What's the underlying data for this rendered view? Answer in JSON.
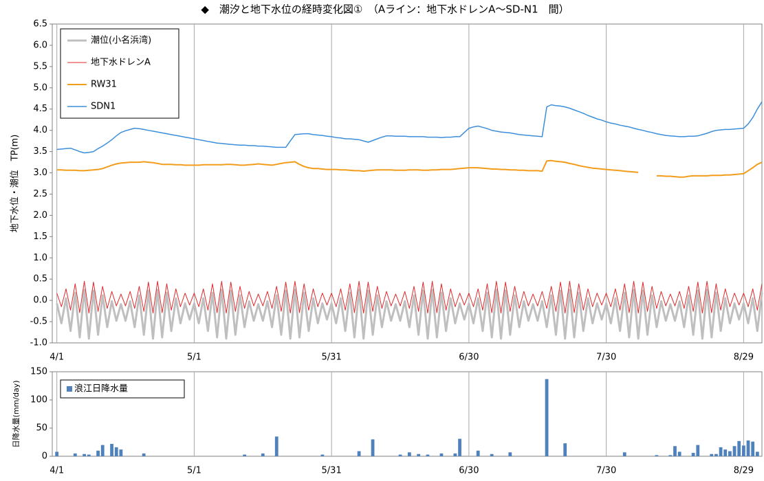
{
  "chart_data": [
    {
      "type": "line",
      "title": "◆　潮汐と地下水位の経時変化図①　（Aライン：地下水ドレンA～SD-N1　間）",
      "ylabel": "地下水位・潮位　TP(m)",
      "x": [
        0,
        1,
        2,
        3,
        4,
        5,
        6,
        7,
        8,
        9,
        10,
        11,
        12,
        13,
        14,
        15,
        16,
        17,
        18,
        19,
        20,
        21,
        22,
        23,
        24,
        25,
        26,
        27,
        28,
        29,
        30,
        31,
        32,
        33,
        34,
        35,
        36,
        37,
        38,
        39,
        40,
        41,
        42,
        43,
        44,
        45,
        46,
        47,
        48,
        49,
        50,
        51,
        52,
        53,
        54,
        55,
        56,
        57,
        58,
        59,
        60,
        61,
        62,
        63,
        64,
        65,
        66,
        67,
        68,
        69,
        70,
        71,
        72,
        73,
        74,
        75,
        76,
        77,
        78,
        79,
        80,
        81,
        82,
        83,
        84,
        85,
        86,
        87,
        88,
        89,
        90,
        91,
        92,
        93,
        94,
        95,
        96,
        97,
        98,
        99,
        100,
        101,
        102,
        103,
        104,
        105,
        106,
        107,
        108,
        109,
        110,
        111,
        112,
        113,
        114,
        115,
        116,
        117,
        118,
        119,
        120,
        121,
        122,
        123,
        124,
        125,
        126,
        127,
        128,
        129,
        130,
        131,
        132,
        133,
        134,
        135,
        136,
        137,
        138,
        139,
        140,
        141,
        142,
        143,
        144,
        145,
        146,
        147,
        148,
        149,
        150,
        151,
        152,
        153,
        154
      ],
      "series": [
        {
          "name": "潮位(小名浜湾)",
          "color": "#bfbfbf",
          "width": 3,
          "values": [
            -0.07,
            -0.54,
            0.05,
            -0.72,
            0.18,
            -0.87,
            0.25,
            -0.9,
            0.23,
            -0.81,
            0.12,
            -0.63,
            -0.02,
            -0.48,
            -0.09,
            -0.48,
            -0.02,
            -0.63,
            0.12,
            -0.81,
            0.23,
            -0.9,
            0.25,
            -0.87,
            0.18,
            -0.72,
            0.05,
            -0.54,
            -0.07,
            -0.45,
            -0.07,
            -0.54,
            0.05,
            -0.72,
            0.18,
            -0.87,
            0.25,
            -0.9,
            0.23,
            -0.81,
            0.12,
            -0.63,
            -0.02,
            -0.48,
            -0.09,
            -0.48,
            -0.02,
            -0.63,
            0.12,
            -0.81,
            0.23,
            -0.9,
            0.25,
            -0.87,
            0.18,
            -0.72,
            0.05,
            -0.54,
            -0.07,
            -0.45,
            -0.07,
            -0.54,
            0.05,
            -0.72,
            0.18,
            -0.87,
            0.25,
            -0.9,
            0.23,
            -0.81,
            0.12,
            -0.63,
            -0.02,
            -0.48,
            -0.09,
            -0.48,
            -0.02,
            -0.63,
            0.12,
            -0.81,
            0.23,
            -0.9,
            0.25,
            -0.87,
            0.18,
            -0.72,
            0.05,
            -0.54,
            -0.07,
            -0.45,
            -0.07,
            -0.54,
            0.05,
            -0.72,
            0.18,
            -0.87,
            0.25,
            -0.9,
            0.23,
            -0.81,
            0.12,
            -0.63,
            -0.02,
            -0.48,
            -0.09,
            -0.48,
            -0.02,
            -0.63,
            0.12,
            -0.81,
            0.23,
            -0.9,
            0.25,
            -0.87,
            0.18,
            -0.72,
            0.05,
            -0.54,
            -0.07,
            -0.45,
            -0.07,
            -0.54,
            0.05,
            -0.72,
            0.18,
            -0.87,
            0.25,
            -0.9,
            0.23,
            -0.81,
            0.12,
            -0.63,
            -0.02,
            -0.48,
            -0.09,
            -0.48,
            -0.02,
            -0.63,
            0.12,
            -0.81,
            0.23,
            -0.9,
            0.25,
            -0.87,
            0.18,
            -0.72,
            0.05,
            -0.54,
            -0.07,
            -0.45,
            -0.07,
            -0.54,
            0.05,
            -0.72,
            0.18
          ]
        },
        {
          "name": "地下水ドレンA",
          "color": "#e02828",
          "width": 1,
          "values": [
            0.17,
            -0.15,
            0.27,
            -0.23,
            0.39,
            -0.29,
            0.45,
            -0.3,
            0.43,
            -0.26,
            0.33,
            -0.19,
            0.21,
            -0.13,
            0.15,
            -0.13,
            0.21,
            -0.19,
            0.33,
            -0.26,
            0.43,
            -0.3,
            0.45,
            -0.29,
            0.39,
            -0.23,
            0.27,
            -0.15,
            0.17,
            -0.11,
            0.17,
            -0.15,
            0.27,
            -0.23,
            0.39,
            -0.29,
            0.45,
            -0.3,
            0.43,
            -0.26,
            0.33,
            -0.19,
            0.21,
            -0.13,
            0.15,
            -0.13,
            0.21,
            -0.19,
            0.33,
            -0.26,
            0.43,
            -0.3,
            0.45,
            -0.29,
            0.39,
            -0.23,
            0.27,
            -0.15,
            0.17,
            -0.11,
            0.17,
            -0.15,
            0.27,
            -0.23,
            0.39,
            -0.29,
            0.45,
            -0.3,
            0.43,
            -0.26,
            0.33,
            -0.19,
            0.21,
            -0.13,
            0.15,
            -0.13,
            0.21,
            -0.19,
            0.33,
            -0.26,
            0.43,
            -0.3,
            0.45,
            -0.29,
            0.39,
            -0.23,
            0.27,
            -0.15,
            0.17,
            -0.11,
            0.17,
            -0.15,
            0.27,
            -0.23,
            0.39,
            -0.29,
            0.45,
            -0.3,
            0.43,
            -0.26,
            0.33,
            -0.19,
            0.21,
            -0.13,
            0.15,
            -0.13,
            0.21,
            -0.19,
            0.33,
            -0.26,
            0.43,
            -0.3,
            0.45,
            -0.29,
            0.39,
            -0.23,
            0.27,
            -0.15,
            0.17,
            -0.11,
            0.17,
            -0.15,
            0.27,
            -0.23,
            0.39,
            -0.29,
            0.45,
            -0.3,
            0.43,
            -0.26,
            0.33,
            -0.19,
            0.21,
            -0.13,
            0.15,
            -0.13,
            0.21,
            -0.19,
            0.33,
            -0.26,
            0.43,
            -0.3,
            0.45,
            -0.29,
            0.39,
            -0.23,
            0.27,
            -0.15,
            0.17,
            -0.11,
            0.17,
            -0.15,
            0.27,
            -0.23,
            0.39
          ]
        },
        {
          "name": "RW31",
          "color": "#f39c1a",
          "width": 2,
          "values": [
            3.07,
            3.07,
            3.06,
            3.06,
            3.06,
            3.05,
            3.05,
            3.06,
            3.07,
            3.08,
            3.1,
            3.14,
            3.18,
            3.21,
            3.23,
            3.24,
            3.25,
            3.25,
            3.25,
            3.26,
            3.25,
            3.24,
            3.22,
            3.2,
            3.2,
            3.2,
            3.19,
            3.19,
            3.18,
            3.18,
            3.18,
            3.18,
            3.19,
            3.19,
            3.19,
            3.19,
            3.19,
            3.2,
            3.2,
            3.19,
            3.18,
            3.18,
            3.19,
            3.2,
            3.21,
            3.2,
            3.19,
            3.18,
            3.2,
            3.22,
            3.24,
            3.25,
            3.26,
            3.2,
            3.15,
            3.12,
            3.1,
            3.1,
            3.09,
            3.08,
            3.08,
            3.08,
            3.07,
            3.07,
            3.06,
            3.05,
            3.05,
            3.04,
            3.05,
            3.06,
            3.07,
            3.07,
            3.07,
            3.07,
            3.06,
            3.06,
            3.06,
            3.07,
            3.07,
            3.07,
            3.06,
            3.06,
            3.07,
            3.07,
            3.08,
            3.08,
            3.08,
            3.09,
            3.1,
            3.11,
            3.12,
            3.12,
            3.12,
            3.11,
            3.1,
            3.09,
            3.09,
            3.08,
            3.08,
            3.07,
            3.07,
            3.06,
            3.06,
            3.05,
            3.05,
            3.05,
            3.04,
            3.28,
            3.29,
            3.27,
            3.26,
            3.25,
            3.22,
            3.2,
            3.17,
            3.15,
            3.13,
            3.11,
            3.1,
            3.09,
            3.08,
            3.07,
            3.06,
            3.05,
            3.04,
            3.03,
            3.02,
            3.01,
            null,
            null,
            null,
            2.93,
            2.93,
            2.92,
            2.92,
            2.91,
            2.9,
            2.9,
            2.92,
            2.93,
            2.93,
            2.93,
            2.93,
            2.94,
            2.94,
            2.94,
            2.95,
            2.95,
            2.96,
            2.97,
            2.98,
            3.05,
            3.12,
            3.2,
            3.25
          ]
        },
        {
          "name": "SDN1",
          "color": "#3b8edb",
          "width": 1.5,
          "values": [
            3.55,
            3.56,
            3.57,
            3.58,
            3.54,
            3.5,
            3.47,
            3.48,
            3.5,
            3.57,
            3.63,
            3.7,
            3.78,
            3.87,
            3.95,
            3.99,
            4.02,
            4.05,
            4.04,
            4.02,
            4.0,
            3.98,
            3.96,
            3.94,
            3.92,
            3.9,
            3.88,
            3.86,
            3.84,
            3.82,
            3.8,
            3.78,
            3.76,
            3.74,
            3.72,
            3.7,
            3.69,
            3.68,
            3.67,
            3.66,
            3.65,
            3.65,
            3.64,
            3.64,
            3.63,
            3.63,
            3.62,
            3.61,
            3.6,
            3.6,
            3.6,
            3.75,
            3.9,
            3.91,
            3.92,
            3.92,
            3.9,
            3.89,
            3.88,
            3.86,
            3.85,
            3.83,
            3.82,
            3.8,
            3.8,
            3.79,
            3.78,
            3.75,
            3.72,
            3.76,
            3.8,
            3.84,
            3.87,
            3.87,
            3.86,
            3.86,
            3.86,
            3.85,
            3.85,
            3.85,
            3.85,
            3.84,
            3.84,
            3.84,
            3.83,
            3.84,
            3.84,
            3.85,
            3.85,
            3.95,
            4.05,
            4.08,
            4.1,
            4.07,
            4.04,
            4.0,
            3.98,
            3.96,
            3.95,
            3.94,
            3.92,
            3.9,
            3.89,
            3.88,
            3.87,
            3.86,
            3.85,
            4.55,
            4.6,
            4.58,
            4.57,
            4.55,
            4.52,
            4.48,
            4.44,
            4.4,
            4.35,
            4.31,
            4.27,
            4.24,
            4.2,
            4.17,
            4.15,
            4.12,
            4.1,
            4.08,
            4.05,
            4.02,
            4.0,
            3.97,
            3.95,
            3.92,
            3.9,
            3.88,
            3.87,
            3.86,
            3.85,
            3.85,
            3.86,
            3.86,
            3.87,
            3.9,
            3.93,
            3.97,
            4.0,
            4.01,
            4.02,
            4.02,
            4.03,
            4.04,
            4.05,
            4.15,
            4.3,
            4.5,
            4.67
          ]
        }
      ],
      "xlim": [
        -1,
        154
      ],
      "xticks": [
        {
          "value": 0,
          "label": "4/1"
        },
        {
          "value": 30,
          "label": "5/1"
        },
        {
          "value": 60,
          "label": "5/31"
        },
        {
          "value": 90,
          "label": "6/30"
        },
        {
          "value": 120,
          "label": "7/30"
        },
        {
          "value": 150,
          "label": "8/29"
        }
      ],
      "ylim": [
        -1,
        6.5
      ],
      "yticks": [
        {
          "value": -1,
          "label": "-1.0"
        },
        -0.5,
        {
          "value": 0,
          "label": "0.0"
        },
        0.5,
        {
          "value": 1,
          "label": "1.0"
        },
        1.5,
        {
          "value": 2,
          "label": "2.0"
        },
        2.5,
        {
          "value": 3,
          "label": "3.0"
        },
        3.5,
        {
          "value": 4,
          "label": "4.0"
        },
        4.5,
        {
          "value": 5,
          "label": "5.0"
        },
        5.5,
        {
          "value": 6,
          "label": "6.0"
        },
        6.5
      ],
      "grid": "x",
      "legend": "upper left"
    },
    {
      "type": "bar",
      "ylabel": "日降水量(mm/day)",
      "x": [
        0,
        4,
        6,
        7,
        9,
        10,
        12,
        13,
        14,
        19,
        41,
        45,
        48,
        58,
        66,
        69,
        75,
        77,
        79,
        81,
        84,
        87,
        88,
        92,
        95,
        99,
        107,
        111,
        124,
        131,
        134,
        135,
        136,
        139,
        140,
        143,
        144,
        145,
        146,
        147,
        148,
        149,
        150,
        151,
        152,
        153
      ],
      "series": [
        {
          "name": "浪江日降水量",
          "color": "#4f81bd",
          "values": [
            8,
            5,
            4,
            3,
            10,
            20,
            22,
            16,
            12,
            5,
            3,
            5,
            35,
            3,
            9,
            30,
            3,
            7,
            4,
            3,
            5,
            5,
            31,
            10,
            4,
            7,
            137,
            23,
            7,
            2,
            2,
            18,
            8,
            6,
            20,
            4,
            4,
            16,
            12,
            9,
            18,
            27,
            19,
            28,
            26,
            8
          ]
        }
      ],
      "xlim": [
        -1,
        154
      ],
      "xticks": [
        {
          "value": 0,
          "label": "4/1"
        },
        {
          "value": 30,
          "label": "5/1"
        },
        {
          "value": 60,
          "label": "5/31"
        },
        {
          "value": 90,
          "label": "6/30"
        },
        {
          "value": 120,
          "label": "7/30"
        },
        {
          "value": 150,
          "label": "8/29"
        }
      ],
      "ylim": [
        0,
        150
      ],
      "yticks": [
        0,
        50,
        100,
        150
      ],
      "grid": "x",
      "legend": "upper left"
    }
  ]
}
